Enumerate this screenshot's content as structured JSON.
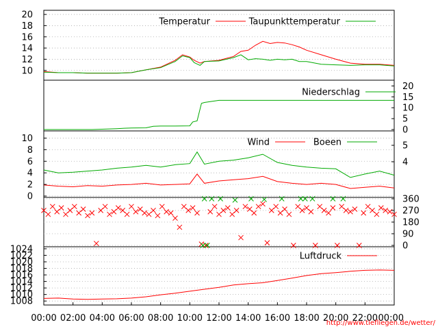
{
  "chart_data": {
    "type": "line",
    "time_axis": {
      "ticks": [
        "00:00",
        "02:00",
        "04:00",
        "06:00",
        "08:00",
        "10:00",
        "12:00",
        "14:00",
        "16:00",
        "18:00",
        "20:00",
        "22:00",
        "00:00"
      ],
      "range_hours": [
        0,
        24
      ]
    },
    "credit": "http://www.tiefliegen.de/wetter/",
    "colors": {
      "red": "#ff0000",
      "green": "#00aa00",
      "grid": "#aaaaaa"
    },
    "panels": [
      {
        "id": "temperature",
        "left_ticks": [
          "10",
          "12",
          "14",
          "16",
          "18",
          "20"
        ],
        "left_range": [
          8.5,
          20.5
        ],
        "grid": true,
        "series": [
          {
            "name": "Temperatur",
            "color": "red",
            "x": [
              0,
              1,
              2,
              3,
              4,
              5,
              6,
              7,
              8,
              9,
              9.5,
              10,
              10.3,
              10.7,
              11,
              12,
              13,
              13.5,
              14,
              14.5,
              15,
              15.5,
              16,
              16.5,
              17,
              17.5,
              18,
              19,
              20,
              21,
              22,
              23,
              24
            ],
            "y": [
              9.8,
              9.6,
              9.6,
              9.5,
              9.5,
              9.5,
              9.6,
              10.1,
              10.6,
              11.8,
              12.8,
              12.4,
              11.8,
              11.3,
              11.6,
              11.8,
              12.5,
              13.4,
              13.6,
              14.5,
              15.2,
              14.8,
              15.0,
              14.9,
              14.6,
              14.2,
              13.6,
              12.8,
              12.0,
              11.3,
              11.1,
              11.1,
              10.9
            ]
          },
          {
            "name": "Taupunkttemperatur",
            "color": "green",
            "x": [
              0,
              1,
              2,
              3,
              4,
              5,
              6,
              7,
              8,
              9,
              9.5,
              10,
              10.3,
              10.7,
              11,
              12,
              13,
              13.5,
              14,
              14.5,
              15,
              15.5,
              16,
              16.5,
              17,
              17.5,
              18,
              19,
              20,
              21,
              22,
              23,
              24
            ],
            "y": [
              9.7,
              9.6,
              9.6,
              9.5,
              9.5,
              9.5,
              9.6,
              10.1,
              10.5,
              11.6,
              12.6,
              12.3,
              11.4,
              10.9,
              11.6,
              11.7,
              12.3,
              12.8,
              11.9,
              12.1,
              12.0,
              11.8,
              12.0,
              11.9,
              12.0,
              11.6,
              11.6,
              11.1,
              11.0,
              10.9,
              11.0,
              11.0,
              10.8
            ]
          }
        ]
      },
      {
        "id": "precipitation",
        "right_ticks": [
          "0",
          "5",
          "10",
          "15",
          "20"
        ],
        "right_range": [
          0,
          22
        ],
        "grid": false,
        "series": [
          {
            "name": "Niederschlag",
            "color": "green",
            "x": [
              0,
              3.3,
              5,
              5.5,
              6,
              7,
              7.5,
              8,
              9,
              10,
              10.2,
              10.5,
              10.8,
              11,
              12,
              14,
              16,
              18,
              20,
              22,
              24
            ],
            "y": [
              0,
              0,
              0.4,
              0.6,
              0.7,
              0.8,
              1.5,
              1.6,
              1.6,
              1.7,
              3.5,
              4,
              12,
              12.4,
              13.4,
              13.4,
              13.4,
              13.4,
              13.4,
              13.4,
              13.4
            ]
          }
        ]
      },
      {
        "id": "wind",
        "left_ticks": [
          "0",
          "2",
          "4",
          "6",
          "8",
          "10"
        ],
        "left_range": [
          0,
          11
        ],
        "right_ticks": [
          "4",
          "5"
        ],
        "grid": true,
        "series": [
          {
            "name": "Wind",
            "color": "red",
            "x": [
              0,
              1,
              2,
              3,
              4,
              5,
              6,
              7,
              8,
              9,
              10,
              10.5,
              11,
              12,
              13,
              14,
              15,
              16,
              17,
              18,
              19,
              20,
              21,
              22,
              23,
              24
            ],
            "y": [
              1.9,
              1.7,
              1.6,
              1.8,
              1.7,
              1.9,
              2.0,
              2.2,
              1.9,
              2.0,
              2.1,
              3.8,
              2.2,
              2.6,
              2.8,
              3.0,
              3.4,
              2.5,
              2.2,
              2.0,
              2.2,
              2.0,
              1.3,
              1.5,
              1.7,
              1.4
            ]
          },
          {
            "name": "Boeen",
            "color": "green",
            "x": [
              0,
              1,
              2,
              3,
              4,
              5,
              6,
              7,
              8,
              9,
              10,
              10.5,
              11,
              12,
              13,
              14,
              15,
              16,
              17,
              18,
              19,
              20,
              21,
              22,
              23,
              24
            ],
            "y": [
              4.5,
              4.0,
              4.1,
              4.3,
              4.5,
              4.8,
              5.0,
              5.3,
              5.0,
              5.4,
              5.6,
              7.6,
              5.5,
              6.0,
              6.2,
              6.6,
              7.2,
              5.8,
              5.3,
              5.0,
              4.8,
              4.7,
              3.2,
              3.8,
              4.3,
              3.6
            ]
          }
        ]
      },
      {
        "id": "wind_direction",
        "right_ticks": [
          "0",
          "90",
          "180",
          "270",
          "360"
        ],
        "right_range": [
          0,
          360
        ],
        "grid": true,
        "series": [
          {
            "name": "",
            "color": "red",
            "x": [
              0,
              0.3,
              0.6,
              0.9,
              1.2,
              1.5,
              1.8,
              2.1,
              2.4,
              2.7,
              3.0,
              3.3,
              3.6,
              3.9,
              4.2,
              4.5,
              4.8,
              5.1,
              5.4,
              5.7,
              6.0,
              6.3,
              6.6,
              6.9,
              7.2,
              7.5,
              7.8,
              8.1,
              8.4,
              8.7,
              9.0,
              9.3,
              9.6,
              9.9,
              10.2,
              10.5,
              10.8,
              11.1,
              11.4,
              11.7,
              12.0,
              12.3,
              12.6,
              12.9,
              13.2,
              13.5,
              13.8,
              14.1,
              14.4,
              14.7,
              15.0,
              15.3,
              15.6,
              15.9,
              16.2,
              16.5,
              16.8,
              17.1,
              17.4,
              17.7,
              18.0,
              18.3,
              18.6,
              18.9,
              19.2,
              19.5,
              19.8,
              20.1,
              20.4,
              20.7,
              21.0,
              21.3,
              21.6,
              21.9,
              22.2,
              22.5,
              22.8,
              23.1,
              23.4,
              23.7,
              24.0
            ],
            "y": [
              270,
              240,
              300,
              260,
              290,
              240,
              270,
              300,
              250,
              280,
              230,
              250,
              15,
              270,
              300,
              240,
              260,
              290,
              270,
              240,
              300,
              260,
              280,
              250,
              240,
              270,
              230,
              300,
              260,
              250,
              210,
              140,
              300,
              270,
              290,
              250,
              10,
              0,
              260,
              300,
              240,
              270,
              290,
              240,
              270,
              60,
              300,
              280,
              250,
              300,
              320,
              20,
              270,
              300,
              250,
              280,
              240,
              0,
              300,
              270,
              290,
              260,
              0,
              300,
              270,
              250,
              290,
              0,
              300,
              270,
              260,
              280,
              0,
              250,
              300,
              270,
              240,
              290,
              270,
              260,
              240
            ]
          },
          {
            "name": "",
            "color": "green",
            "x": [
              10.9,
              11.0,
              11.2,
              11.5,
              12.1,
              13.1,
              14.2,
              15.1,
              16.3,
              17.6,
              17.9,
              18.4,
              19.8,
              20.5
            ],
            "y": [
              0,
              360,
              0,
              360,
              360,
              350,
              360,
              355,
              360,
              360,
              360,
              360,
              360,
              360
            ]
          }
        ]
      },
      {
        "id": "pressure",
        "left_ticks": [
          "1008",
          "1010",
          "1012",
          "1014",
          "1016",
          "1018",
          "1020",
          "1022",
          "1024"
        ],
        "left_range": [
          1007.2,
          1024.2
        ],
        "grid": true,
        "series": [
          {
            "name": "Luftdruck",
            "color": "red",
            "x": [
              0,
              1,
              2,
              3,
              4,
              5,
              6,
              7,
              8,
              9,
              10,
              11,
              12,
              13,
              14,
              15,
              16,
              17,
              18,
              19,
              20,
              21,
              22,
              23,
              24
            ],
            "y": [
              1008.8,
              1008.9,
              1008.6,
              1008.5,
              1008.6,
              1008.7,
              1008.9,
              1009.3,
              1009.9,
              1010.4,
              1011.0,
              1011.6,
              1012.2,
              1012.9,
              1013.3,
              1013.6,
              1014.3,
              1015.0,
              1015.8,
              1016.4,
              1016.7,
              1017.1,
              1017.4,
              1017.5,
              1017.4
            ]
          }
        ]
      }
    ]
  }
}
